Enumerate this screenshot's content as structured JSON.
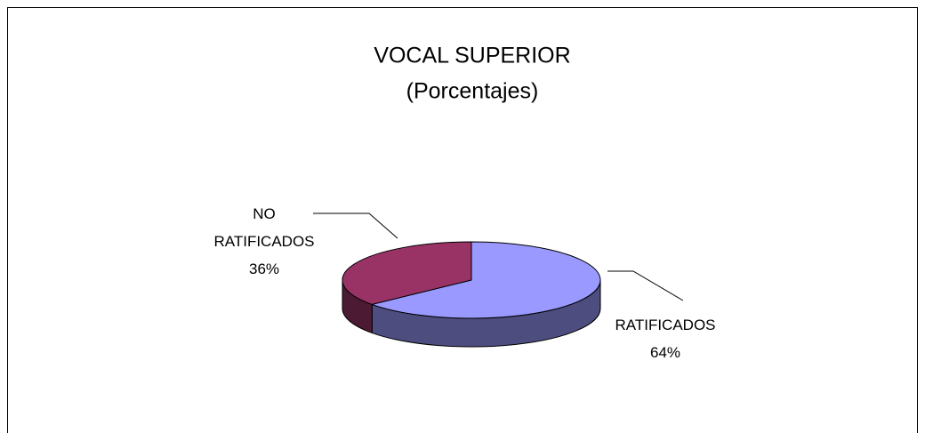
{
  "chart_data": {
    "type": "pie",
    "title": "VOCAL SUPERIOR",
    "subtitle": "(Porcentajes)",
    "categories": [
      "RATIFICADOS",
      "NO RATIFICADOS"
    ],
    "values": [
      64,
      36
    ],
    "value_labels": [
      "64%",
      "36%"
    ],
    "colors": [
      "#9999ff",
      "#993366"
    ]
  }
}
